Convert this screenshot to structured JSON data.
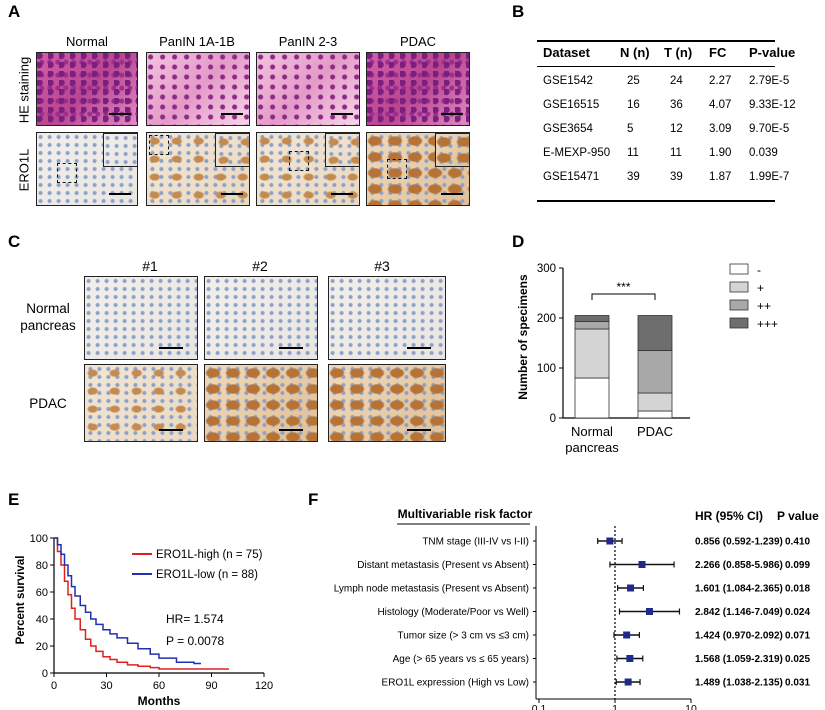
{
  "panel_labels": {
    "a": "A",
    "b": "B",
    "c": "C",
    "d": "D",
    "e": "E",
    "f": "F"
  },
  "panelA": {
    "columns": [
      "Normal",
      "PanIN 1A-1B",
      "PanIN 2-3",
      "PDAC"
    ],
    "rows": [
      "HE staining",
      "ERO1L"
    ]
  },
  "panelB": {
    "headers": [
      "Dataset",
      "N (n)",
      "T (n)",
      "FC",
      "P-value"
    ],
    "rows": [
      [
        "GSE1542",
        "25",
        "24",
        "2.27",
        "2.79E-5"
      ],
      [
        "GSE16515",
        "16",
        "36",
        "4.07",
        "9.33E-12"
      ],
      [
        "GSE3654",
        "5",
        "12",
        "3.09",
        "9.70E-5"
      ],
      [
        "E-MEXP-950",
        "11",
        "11",
        "1.90",
        "0.039"
      ],
      [
        "GSE15471",
        "39",
        "39",
        "1.87",
        "1.99E-7"
      ]
    ]
  },
  "panelC": {
    "columns": [
      "#1",
      "#2",
      "#3"
    ],
    "rows": [
      "Normal\npancreas",
      "PDAC"
    ]
  },
  "chart_data": [
    {
      "type": "bar",
      "stacked": true,
      "ylabel": "Number of specimens",
      "ylim": [
        0,
        300
      ],
      "yticks": [
        "0",
        "100",
        "200",
        "300"
      ],
      "categories": [
        "Normal pancreas",
        "PDAC"
      ],
      "category_labels": [
        "Normal",
        "pancreas",
        "PDAC"
      ],
      "series": [
        {
          "name": "-",
          "color": "#ffffff",
          "values": [
            80,
            14
          ]
        },
        {
          "name": "+",
          "color": "#d4d4d4",
          "values": [
            98,
            36
          ]
        },
        {
          "name": "++",
          "color": "#a8a8a8",
          "values": [
            15,
            85
          ]
        },
        {
          "name": "+++",
          "color": "#6e6e6e",
          "values": [
            12,
            70
          ]
        }
      ],
      "significance": "***"
    },
    {
      "type": "line",
      "ylabel": "Percent survival",
      "xlabel": "Months",
      "xlim": [
        0,
        120
      ],
      "ylim": [
        0,
        100
      ],
      "xticks": [
        "0",
        "30",
        "60",
        "90",
        "120"
      ],
      "yticks": [
        "0",
        "20",
        "40",
        "60",
        "80",
        "100"
      ],
      "series": [
        {
          "name": "ERO1L-high (n = 75)",
          "color": "#e02020",
          "x": [
            0,
            2,
            4,
            6,
            8,
            10,
            12,
            15,
            18,
            21,
            24,
            28,
            32,
            36,
            42,
            48,
            55,
            60,
            70,
            80,
            90,
            100
          ],
          "y": [
            100,
            90,
            80,
            68,
            58,
            48,
            40,
            32,
            25,
            20,
            16,
            12,
            10,
            8,
            6,
            5,
            4,
            3,
            3,
            3,
            3,
            3
          ]
        },
        {
          "name": "ERO1L-low (n = 88)",
          "color": "#2030b0",
          "x": [
            0,
            2,
            4,
            6,
            8,
            10,
            12,
            15,
            18,
            21,
            24,
            28,
            32,
            36,
            42,
            48,
            55,
            60,
            70,
            80,
            84
          ],
          "y": [
            100,
            95,
            88,
            80,
            72,
            64,
            57,
            50,
            45,
            40,
            36,
            32,
            29,
            26,
            22,
            18,
            14,
            11,
            8,
            7,
            7
          ]
        }
      ],
      "annotations": [
        "HR= 1.574",
        "P = 0.0078"
      ]
    },
    {
      "type": "forest",
      "title": "Multivariable risk factor",
      "xscale": "log",
      "xlim": [
        0.1,
        10
      ],
      "xticks": [
        "0.1",
        "1",
        "10"
      ],
      "headers": [
        "HR (95% CI)",
        "P value"
      ],
      "rows": [
        {
          "label": "TNM stage (III-IV vs I-II)",
          "hr": 0.856,
          "lo": 0.592,
          "hi": 1.239,
          "ci": "0.856 (0.592-1.239)",
          "p": "0.410"
        },
        {
          "label": "Distant metastasis (Present vs Absent)",
          "hr": 2.266,
          "lo": 0.858,
          "hi": 5.986,
          "ci": "2.266 (0.858-5.986)",
          "p": "0.099"
        },
        {
          "label": "Lymph node metastasis (Present vs Absent)",
          "hr": 1.601,
          "lo": 1.084,
          "hi": 2.365,
          "ci": "1.601 (1.084-2.365)",
          "p": "0.018"
        },
        {
          "label": "Histology (Moderate/Poor vs Well)",
          "hr": 2.842,
          "lo": 1.146,
          "hi": 7.049,
          "ci": "2.842 (1.146-7.049)",
          "p": "0.024"
        },
        {
          "label": "Tumor size (> 3 cm vs ≤3 cm)",
          "hr": 1.424,
          "lo": 0.97,
          "hi": 2.092,
          "ci": "1.424 (0.970-2.092)",
          "p": "0.071"
        },
        {
          "label": "Age (> 65 years vs ≤ 65 years)",
          "hr": 1.568,
          "lo": 1.059,
          "hi": 2.319,
          "ci": "1.568 (1.059-2.319)",
          "p": "0.025"
        },
        {
          "label": "ERO1L expression (High vs Low)",
          "hr": 1.489,
          "lo": 1.038,
          "hi": 2.135,
          "ci": "1.489 (1.038-2.135)",
          "p": "0.031"
        }
      ]
    }
  ]
}
